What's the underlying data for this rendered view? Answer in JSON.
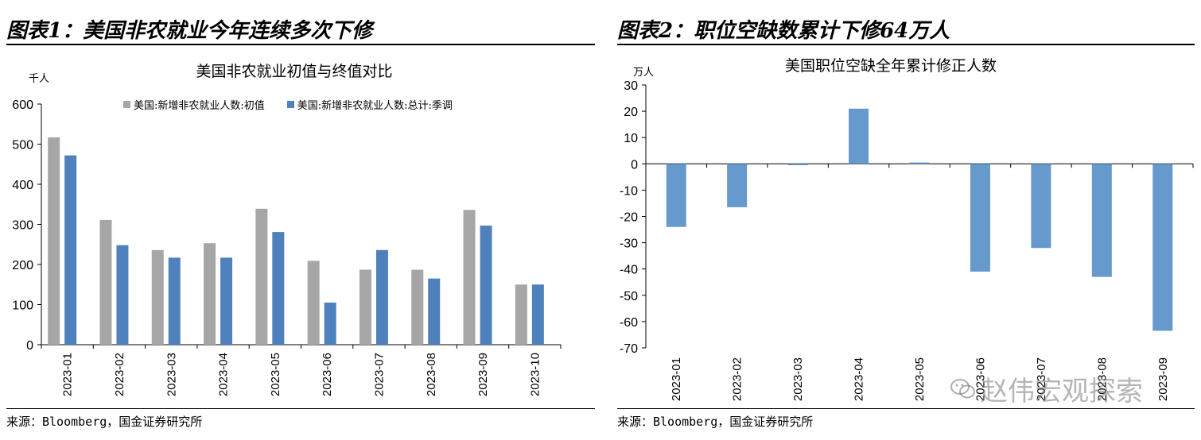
{
  "left_panel": {
    "heading": "图表1：美国非农就业今年连续多次下修",
    "source": "来源：Bloomberg，国金证券研究所"
  },
  "right_panel": {
    "heading": "图表2：职位空缺数累计下修64万人",
    "source": "来源：Bloomberg，国金证券研究所"
  },
  "watermark": "赵伟宏观探索",
  "colors": {
    "gray": "#a6a6a6",
    "blue": "#4f81bd",
    "lightblue": "#6699cc"
  },
  "chart_data": [
    {
      "type": "bar",
      "title": "美国非农就业初值与终值对比",
      "ylabel": "千人",
      "xlabel": "",
      "categories": [
        "2023-01",
        "2023-02",
        "2023-03",
        "2023-04",
        "2023-05",
        "2023-06",
        "2023-07",
        "2023-08",
        "2023-09",
        "2023-10"
      ],
      "series": [
        {
          "name": "美国:新增非农就业人数:初值",
          "color": "#a6a6a6",
          "values": [
            517,
            311,
            236,
            253,
            339,
            209,
            187,
            187,
            336,
            150
          ]
        },
        {
          "name": "美国:新增非农就业人数:总计:季调",
          "color": "#4f81bd",
          "values": [
            472,
            248,
            217,
            217,
            281,
            105,
            236,
            165,
            297,
            150
          ]
        }
      ],
      "ylim": [
        0,
        600
      ],
      "yticks": [
        0,
        100,
        200,
        300,
        400,
        500,
        600
      ],
      "legend": "top",
      "grid": false
    },
    {
      "type": "bar",
      "title": "美国职位空缺全年累计修正人数",
      "ylabel": "万人",
      "xlabel": "",
      "categories": [
        "2023-01",
        "2023-02",
        "2023-03",
        "2023-04",
        "2023-05",
        "2023-06",
        "2023-07",
        "2023-08",
        "2023-09"
      ],
      "series": [
        {
          "color": "#6699cc",
          "values": [
            -24,
            -16.5,
            -0.5,
            21,
            0.5,
            -41,
            -32,
            -43,
            -63.5
          ]
        }
      ],
      "ylim": [
        -70,
        30
      ],
      "yticks": [
        30,
        20,
        10,
        0,
        -10,
        -20,
        -30,
        -40,
        -50,
        -60,
        -70
      ],
      "legend": "none",
      "grid": false
    }
  ]
}
